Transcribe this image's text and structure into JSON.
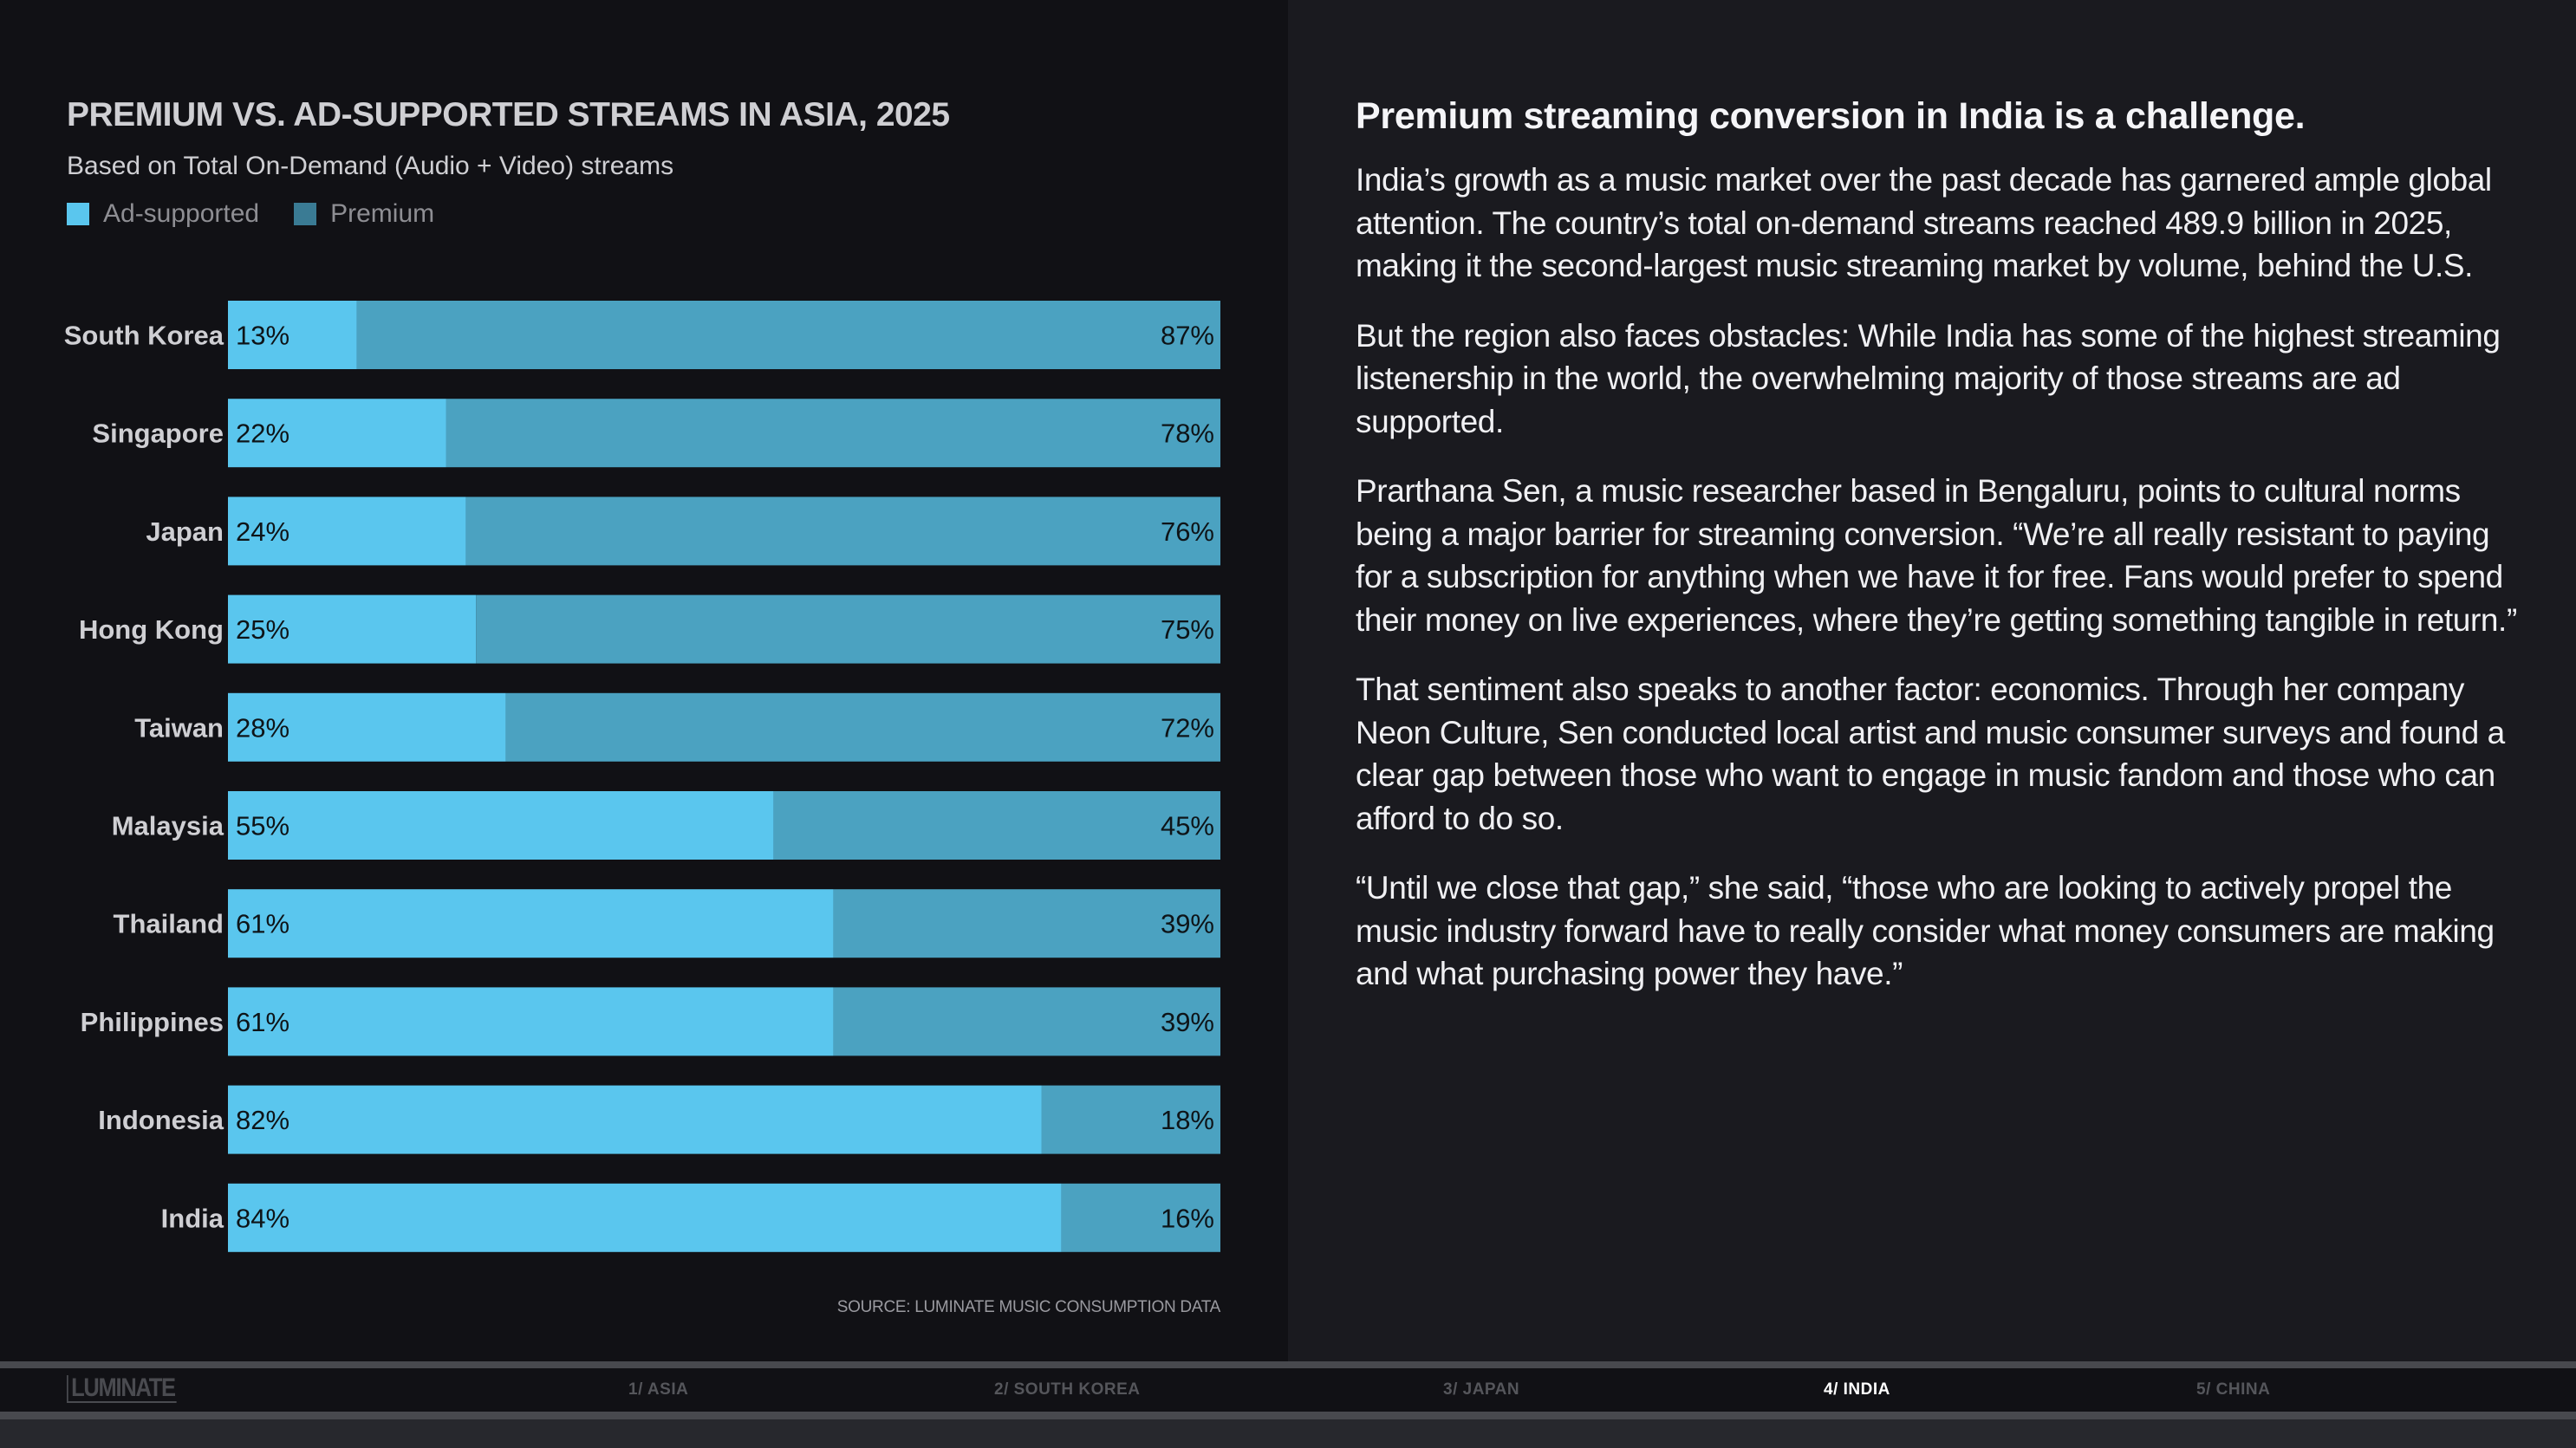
{
  "chart_data": {
    "type": "bar",
    "orientation": "horizontal",
    "stacked": true,
    "percent_stacked": true,
    "title": "PREMIUM VS. AD-SUPPORTED STREAMS IN ASIA, 2025",
    "subtitle": "Based on Total On-Demand (Audio + Video) streams",
    "xlabel": "",
    "ylabel": "",
    "xlim": [
      0,
      100
    ],
    "grid": false,
    "legend_position": "top-left",
    "categories": [
      "South Korea",
      "Singapore",
      "Japan",
      "Hong Kong",
      "Taiwan",
      "Malaysia",
      "Thailand",
      "Philippines",
      "Indonesia",
      "India"
    ],
    "series": [
      {
        "name": "Ad-supported",
        "color": "#5ac6ee",
        "values": [
          13,
          22,
          24,
          25,
          28,
          55,
          61,
          61,
          82,
          84
        ]
      },
      {
        "name": "Premium",
        "color": "#4ba2c1",
        "values": [
          87,
          78,
          76,
          75,
          72,
          45,
          39,
          39,
          18,
          16
        ]
      }
    ],
    "value_label_suffix": "%",
    "source": "SOURCE: LUMINATE MUSIC CONSUMPTION DATA"
  },
  "legend": [
    {
      "label": "Ad-supported",
      "color": "#5ac6ee"
    },
    {
      "label": "Premium",
      "color": "#3a7b94"
    }
  ],
  "article": {
    "headline": "Premium streaming conversion in India is a challenge.",
    "paragraphs": [
      "India’s growth as a music market over the past decade has garnered ample global attention. The country’s total on-demand streams reached 489.9 billion in 2025, making it the second-largest music streaming market by volume, behind the U.S.",
      "But the region also faces obstacles: While India has some of the highest streaming listenership in the world, the overwhelming majority of those streams are ad supported.",
      "Prarthana Sen, a music researcher based in Bengaluru, points to cultural norms being a major barrier for streaming conversion. “We’re all really resistant to paying for a subscription for anything when we have it for free. Fans would prefer to spend their money on live experiences, where they’re getting something tangible in return.”",
      "That sentiment also speaks to another factor: economics. Through her company Neon Culture, Sen conducted local artist and music consumer surveys and found a clear gap between those who want to engage in music fandom and those who can afford to do so.",
      "“Until we close that gap,” she said, “those who are looking to actively propel the music industry forward have to really consider what money consumers are making and what purchasing power they have.”"
    ]
  },
  "footer": {
    "logo": "LUMINATE",
    "nav": [
      {
        "label": "1/ ASIA",
        "active": false
      },
      {
        "label": "2/ SOUTH KOREA",
        "active": false
      },
      {
        "label": "3/ JAPAN",
        "active": false
      },
      {
        "label": "4/ INDIA",
        "active": true
      },
      {
        "label": "5/ CHINA",
        "active": false
      }
    ]
  }
}
